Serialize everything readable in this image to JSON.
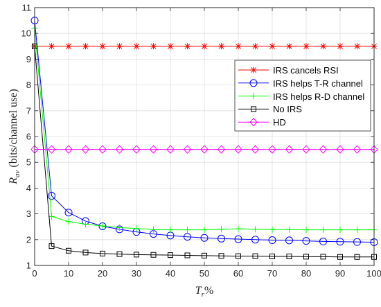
{
  "chart_data": {
    "type": "line",
    "title": "",
    "xlabel": {
      "main": "T",
      "sub": "r",
      "suffix": "%"
    },
    "ylabel": {
      "main": "R",
      "sub": "av",
      "suffix": " (bits/channel use)"
    },
    "xlim": [
      0,
      100
    ],
    "ylim": [
      1,
      11
    ],
    "x_ticks": [
      0,
      10,
      20,
      30,
      40,
      50,
      60,
      70,
      80,
      90,
      100
    ],
    "y_ticks": [
      1,
      2,
      3,
      4,
      5,
      6,
      7,
      8,
      9,
      10,
      11
    ],
    "grid": true,
    "legend_position": "top-right",
    "x": [
      0,
      5,
      10,
      15,
      20,
      25,
      30,
      35,
      40,
      45,
      50,
      55,
      60,
      65,
      70,
      75,
      80,
      85,
      90,
      95,
      100
    ],
    "series": [
      {
        "name": "IRS cancels RSI",
        "color": "#ff0000",
        "marker": "asterisk",
        "values": [
          9.5,
          9.5,
          9.5,
          9.5,
          9.5,
          9.5,
          9.5,
          9.5,
          9.5,
          9.5,
          9.5,
          9.5,
          9.5,
          9.5,
          9.5,
          9.5,
          9.5,
          9.5,
          9.5,
          9.5,
          9.5
        ]
      },
      {
        "name": "IRS helps T-R channel",
        "color": "#0000ff",
        "marker": "circle",
        "values": [
          10.5,
          3.7,
          3.05,
          2.72,
          2.52,
          2.4,
          2.3,
          2.22,
          2.16,
          2.11,
          2.07,
          2.04,
          2.02,
          2.0,
          1.98,
          1.97,
          1.95,
          1.93,
          1.92,
          1.91,
          1.9
        ]
      },
      {
        "name": "IRS helps R-D channel",
        "color": "#00ff00",
        "marker": "plus",
        "values": [
          10.2,
          2.9,
          2.7,
          2.6,
          2.53,
          2.47,
          2.43,
          2.39,
          2.38,
          2.38,
          2.38,
          2.4,
          2.42,
          2.4,
          2.39,
          2.39,
          2.38,
          2.38,
          2.38,
          2.38,
          2.38
        ]
      },
      {
        "name": "No IRS",
        "color": "#000000",
        "marker": "square",
        "values": [
          9.5,
          1.75,
          1.57,
          1.5,
          1.46,
          1.44,
          1.42,
          1.41,
          1.4,
          1.39,
          1.38,
          1.37,
          1.36,
          1.36,
          1.35,
          1.35,
          1.34,
          1.34,
          1.33,
          1.33,
          1.33
        ]
      },
      {
        "name": "HD",
        "color": "#ff00ff",
        "marker": "diamond",
        "values": [
          5.5,
          5.5,
          5.5,
          5.5,
          5.5,
          5.5,
          5.5,
          5.5,
          5.5,
          5.5,
          5.5,
          5.5,
          5.5,
          5.5,
          5.5,
          5.5,
          5.5,
          5.5,
          5.5,
          5.5,
          5.5
        ]
      }
    ]
  }
}
